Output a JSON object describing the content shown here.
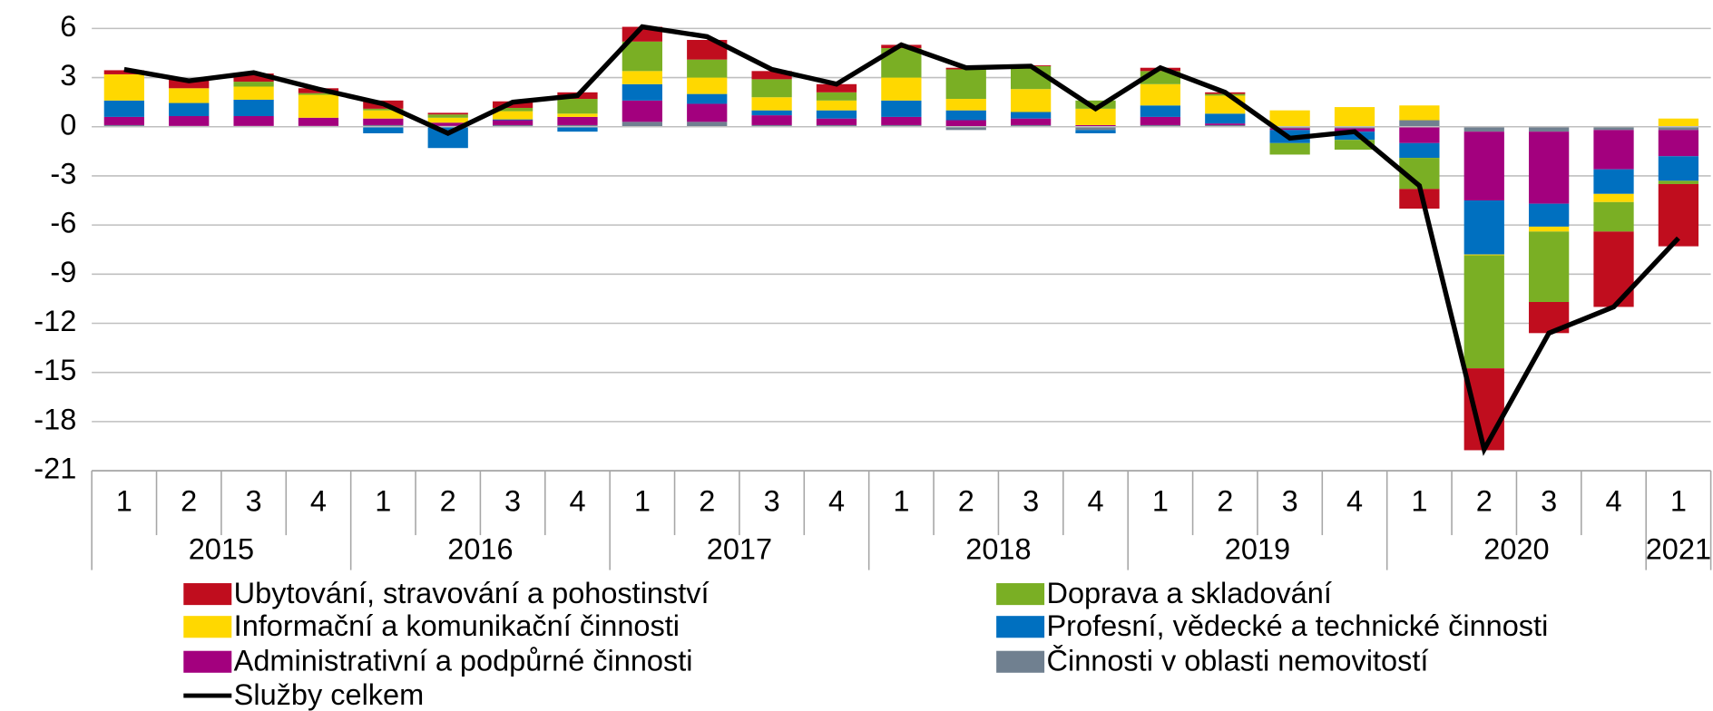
{
  "chart_data": {
    "type": "bar",
    "stacked": true,
    "categories": [
      "1",
      "2",
      "3",
      "4",
      "1",
      "2",
      "3",
      "4",
      "1",
      "2",
      "3",
      "4",
      "1",
      "2",
      "3",
      "4",
      "1",
      "2",
      "3",
      "4",
      "1",
      "2",
      "3",
      "4",
      "1"
    ],
    "x_groups": [
      "2015",
      "2016",
      "2017",
      "2018",
      "2019",
      "2020",
      "2021"
    ],
    "ylim": [
      -21,
      6
    ],
    "yticks": [
      6,
      3,
      0,
      -3,
      -6,
      -9,
      -12,
      -15,
      -18,
      -21
    ],
    "grid": true,
    "series": [
      {
        "name": "Ubytování, stravování a pohostinství",
        "color": "#c00d1e",
        "values": [
          0.25,
          0.6,
          0.5,
          0.3,
          0.5,
          0.1,
          0.4,
          0.4,
          0.9,
          1.2,
          0.5,
          0.5,
          0.2,
          0.1,
          0.05,
          0,
          0.2,
          0.1,
          0,
          0,
          -1.2,
          -5.0,
          -1.9,
          -4.6,
          -3.8
        ]
      },
      {
        "name": "Doprava a skladování",
        "color": "#7aaf24",
        "values": [
          0,
          0,
          0.3,
          0.1,
          0.1,
          0.2,
          0.2,
          0.9,
          1.8,
          1.1,
          1.1,
          0.5,
          1.8,
          1.8,
          1.4,
          0.5,
          0.8,
          0.1,
          -0.7,
          -0.6,
          -1.9,
          -6.9,
          -4.3,
          -1.8,
          -0.2
        ]
      },
      {
        "name": "Informační a komunikační činnosti",
        "color": "#ffd800",
        "values": [
          1.6,
          0.9,
          0.8,
          1.4,
          0.5,
          0.3,
          0.5,
          0.2,
          0.8,
          1.0,
          0.8,
          0.6,
          1.4,
          0.7,
          1.4,
          1.0,
          1.3,
          1.1,
          1.0,
          1.2,
          0.9,
          -0.05,
          -0.3,
          -0.5,
          0.5
        ]
      },
      {
        "name": "Profesní, vědecké a technické činnosti",
        "color": "#0070c0",
        "values": [
          1.0,
          0.8,
          1.0,
          0,
          -0.4,
          -1.3,
          0.05,
          -0.3,
          1.0,
          0.6,
          0.3,
          0.5,
          1.0,
          0.6,
          0.4,
          -0.2,
          0.7,
          0.6,
          -0.8,
          -0.5,
          -0.9,
          -3.3,
          -1.4,
          -1.5,
          -1.5
        ]
      },
      {
        "name": "Administrativní a podpůrné činnosti",
        "color": "#a3007e",
        "values": [
          0.5,
          0.6,
          0.6,
          0.5,
          0.4,
          0.2,
          0.3,
          0.5,
          1.3,
          1.1,
          0.6,
          0.4,
          0.5,
          0.4,
          0.4,
          0.1,
          0.5,
          0.1,
          -0.1,
          -0.2,
          -1.0,
          -4.2,
          -4.4,
          -2.4,
          -1.6
        ]
      },
      {
        "name": "Činnosti v oblasti nemovitostí",
        "color": "#708090",
        "values": [
          0.1,
          0.05,
          0.05,
          0.05,
          0.1,
          0.05,
          0.1,
          0.1,
          0.3,
          0.3,
          0.1,
          0.1,
          0.1,
          -0.2,
          0.1,
          -0.2,
          0.1,
          0.1,
          -0.1,
          -0.1,
          0.4,
          -0.3,
          -0.3,
          -0.2,
          -0.2
        ]
      },
      {
        "name": "Služby celkem",
        "color": "#000000",
        "type": "line",
        "values": [
          3.5,
          2.8,
          3.3,
          2.3,
          1.4,
          -0.4,
          1.5,
          1.9,
          6.1,
          5.5,
          3.5,
          2.6,
          5.0,
          3.6,
          3.7,
          1.1,
          3.6,
          2.1,
          -0.7,
          -0.3,
          -3.6,
          -19.7,
          -12.6,
          -11.0,
          -6.8
        ]
      }
    ]
  }
}
